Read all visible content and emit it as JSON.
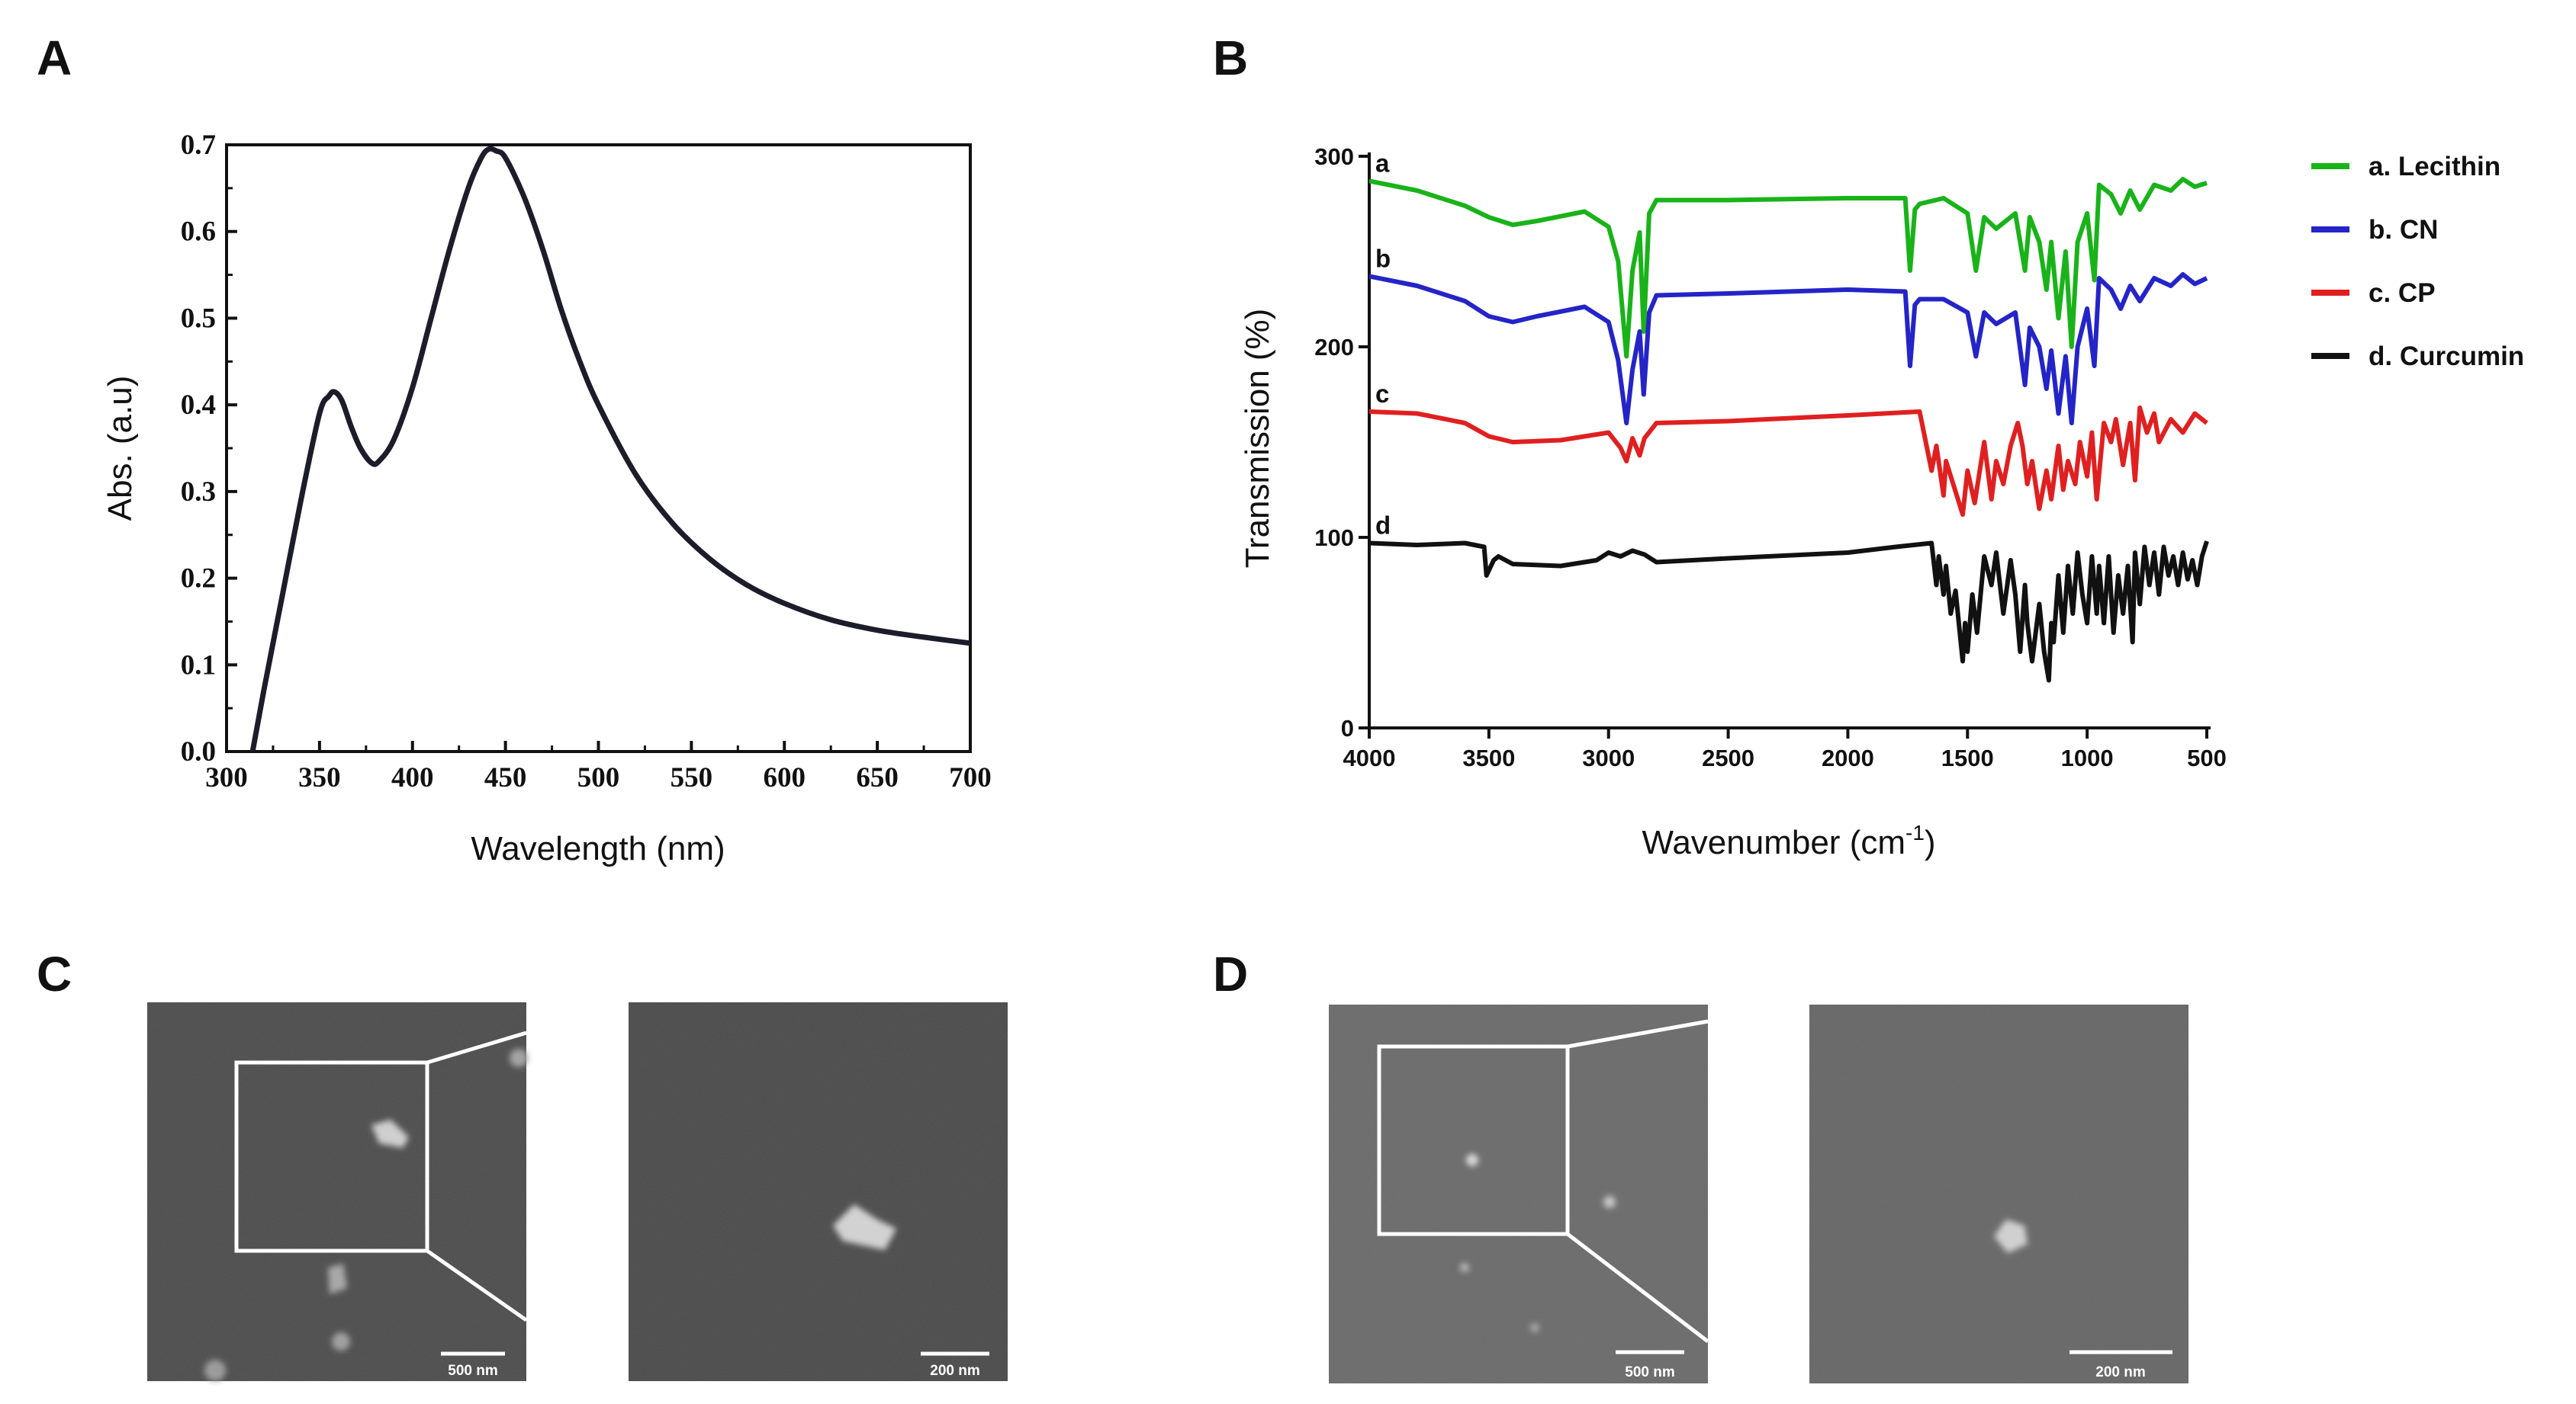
{
  "panels": {
    "A": "A",
    "B": "B",
    "C": "C",
    "D": "D"
  },
  "chart_data": [
    {
      "id": "A",
      "type": "line",
      "title": "",
      "xlabel": "Wavelength (nm)",
      "ylabel": "Abs. (a.u)",
      "xlim": [
        300,
        700
      ],
      "ylim": [
        0.0,
        0.7
      ],
      "xticks": [
        300,
        350,
        400,
        450,
        500,
        550,
        600,
        650,
        700
      ],
      "yticks": [
        0.0,
        0.1,
        0.2,
        0.3,
        0.4,
        0.5,
        0.6,
        0.7
      ],
      "xtick_labels": [
        "300",
        "350",
        "400",
        "450",
        "500",
        "550",
        "600",
        "650",
        "700"
      ],
      "ytick_labels": [
        "0.0",
        "0.1",
        "0.2",
        "0.3",
        "0.4",
        "0.5",
        "0.6",
        "0.7"
      ],
      "grid": false,
      "series": [
        {
          "name": "Absorbance",
          "color": "#1c1c2a",
          "x": [
            314,
            320,
            330,
            340,
            350,
            355,
            358,
            362,
            367,
            372,
            378,
            382,
            390,
            400,
            410,
            420,
            430,
            437,
            441,
            445,
            450,
            460,
            470,
            480,
            490,
            500,
            520,
            540,
            560,
            580,
            600,
            625,
            650,
            675,
            700
          ],
          "y": [
            0.0,
            0.07,
            0.18,
            0.29,
            0.39,
            0.41,
            0.415,
            0.405,
            0.375,
            0.35,
            0.333,
            0.335,
            0.36,
            0.42,
            0.5,
            0.58,
            0.65,
            0.685,
            0.695,
            0.693,
            0.685,
            0.64,
            0.58,
            0.51,
            0.45,
            0.4,
            0.32,
            0.263,
            0.222,
            0.192,
            0.171,
            0.152,
            0.14,
            0.132,
            0.125
          ]
        }
      ]
    },
    {
      "id": "B",
      "type": "line",
      "title": "",
      "xlabel": "Wavenumber (cm",
      "xlabel_sup": "-1",
      "xlabel_close": ")",
      "ylabel": "Transmission (%)",
      "xlim": [
        4000,
        500
      ],
      "ylim": [
        0,
        300
      ],
      "xticks": [
        4000,
        3500,
        3000,
        2500,
        2000,
        1500,
        1000,
        500
      ],
      "yticks": [
        0,
        100,
        200,
        300
      ],
      "xtick_labels": [
        "4000",
        "3500",
        "3000",
        "2500",
        "2000",
        "1500",
        "1000",
        "500"
      ],
      "ytick_labels": [
        "0",
        "100",
        "200",
        "300"
      ],
      "grid": false,
      "legend_position": "right",
      "series": [
        {
          "name": "a. Lecithin",
          "label": "a",
          "color": "#19b319",
          "x": [
            4000,
            3800,
            3600,
            3500,
            3400,
            3300,
            3100,
            3000,
            2960,
            2925,
            2900,
            2870,
            2853,
            2830,
            2800,
            2500,
            2000,
            1760,
            1740,
            1720,
            1700,
            1600,
            1500,
            1465,
            1430,
            1380,
            1300,
            1260,
            1240,
            1200,
            1170,
            1150,
            1120,
            1090,
            1065,
            1040,
            1000,
            970,
            950,
            900,
            860,
            820,
            780,
            720,
            650,
            600,
            550,
            500
          ],
          "y": [
            287,
            282,
            274,
            268,
            264,
            266,
            271,
            263,
            245,
            195,
            240,
            260,
            208,
            270,
            277,
            277,
            278,
            278,
            240,
            272,
            275,
            278,
            270,
            240,
            268,
            262,
            270,
            240,
            268,
            255,
            230,
            255,
            215,
            250,
            200,
            255,
            270,
            235,
            285,
            280,
            270,
            282,
            272,
            285,
            282,
            288,
            284,
            286
          ]
        },
        {
          "name": "b. CN",
          "label": "b",
          "color": "#2424c8",
          "x": [
            4000,
            3800,
            3600,
            3500,
            3400,
            3300,
            3100,
            3000,
            2960,
            2925,
            2900,
            2870,
            2853,
            2830,
            2800,
            2500,
            2000,
            1760,
            1740,
            1720,
            1700,
            1600,
            1500,
            1465,
            1430,
            1380,
            1300,
            1260,
            1240,
            1200,
            1170,
            1150,
            1120,
            1090,
            1065,
            1040,
            1000,
            970,
            950,
            900,
            860,
            820,
            780,
            720,
            650,
            600,
            550,
            500
          ],
          "y": [
            237,
            232,
            224,
            216,
            213,
            216,
            221,
            213,
            193,
            160,
            188,
            208,
            175,
            218,
            227,
            228,
            230,
            229,
            190,
            222,
            225,
            225,
            218,
            195,
            218,
            212,
            218,
            180,
            210,
            200,
            178,
            198,
            165,
            195,
            160,
            200,
            220,
            190,
            236,
            230,
            220,
            232,
            224,
            236,
            232,
            238,
            233,
            236
          ]
        },
        {
          "name": "c. CP",
          "label": "c",
          "color": "#e02020",
          "x": [
            4000,
            3800,
            3600,
            3500,
            3400,
            3200,
            3000,
            2950,
            2925,
            2900,
            2870,
            2850,
            2800,
            2500,
            2000,
            1700,
            1650,
            1630,
            1600,
            1590,
            1560,
            1520,
            1500,
            1470,
            1430,
            1400,
            1380,
            1350,
            1320,
            1290,
            1270,
            1250,
            1230,
            1200,
            1170,
            1150,
            1120,
            1100,
            1080,
            1050,
            1030,
            1000,
            980,
            960,
            930,
            900,
            880,
            850,
            820,
            800,
            780,
            750,
            720,
            700,
            650,
            600,
            550,
            500
          ],
          "y": [
            166,
            165,
            160,
            153,
            150,
            151,
            155,
            147,
            140,
            152,
            143,
            152,
            160,
            161,
            164,
            166,
            135,
            148,
            122,
            140,
            128,
            112,
            135,
            118,
            150,
            120,
            140,
            128,
            148,
            160,
            148,
            128,
            140,
            115,
            135,
            120,
            148,
            125,
            140,
            128,
            150,
            132,
            155,
            120,
            160,
            150,
            162,
            138,
            160,
            130,
            168,
            155,
            165,
            150,
            162,
            155,
            165,
            160
          ]
        },
        {
          "name": "d. Curcumin",
          "label": "d",
          "color": "#111111",
          "x": [
            4000,
            3800,
            3600,
            3520,
            3510,
            3480,
            3460,
            3400,
            3200,
            3050,
            3000,
            2950,
            2900,
            2850,
            2800,
            2500,
            2000,
            1800,
            1650,
            1630,
            1620,
            1600,
            1590,
            1570,
            1550,
            1520,
            1510,
            1500,
            1480,
            1460,
            1430,
            1400,
            1380,
            1350,
            1320,
            1300,
            1280,
            1260,
            1250,
            1230,
            1200,
            1180,
            1160,
            1150,
            1140,
            1120,
            1100,
            1080,
            1060,
            1040,
            1020,
            1000,
            980,
            960,
            950,
            930,
            910,
            890,
            870,
            850,
            830,
            810,
            800,
            780,
            760,
            740,
            720,
            700,
            680,
            660,
            640,
            620,
            600,
            580,
            560,
            540,
            520,
            500
          ],
          "y": [
            97,
            96,
            97,
            95,
            80,
            88,
            90,
            86,
            85,
            88,
            92,
            90,
            93,
            91,
            87,
            89,
            92,
            95,
            97,
            75,
            90,
            70,
            85,
            60,
            72,
            35,
            55,
            40,
            70,
            50,
            90,
            75,
            92,
            60,
            88,
            70,
            40,
            75,
            55,
            35,
            65,
            40,
            25,
            55,
            45,
            80,
            50,
            85,
            60,
            92,
            70,
            55,
            90,
            60,
            85,
            55,
            90,
            50,
            80,
            60,
            85,
            45,
            92,
            65,
            95,
            75,
            92,
            70,
            95,
            80,
            90,
            75,
            92,
            78,
            88,
            75,
            90,
            98
          ]
        }
      ]
    }
  ],
  "micrographs": {
    "C": {
      "left_scale": "500 nm",
      "right_scale": "200 nm"
    },
    "D": {
      "left_scale": "500 nm",
      "right_scale": "200 nm"
    }
  }
}
